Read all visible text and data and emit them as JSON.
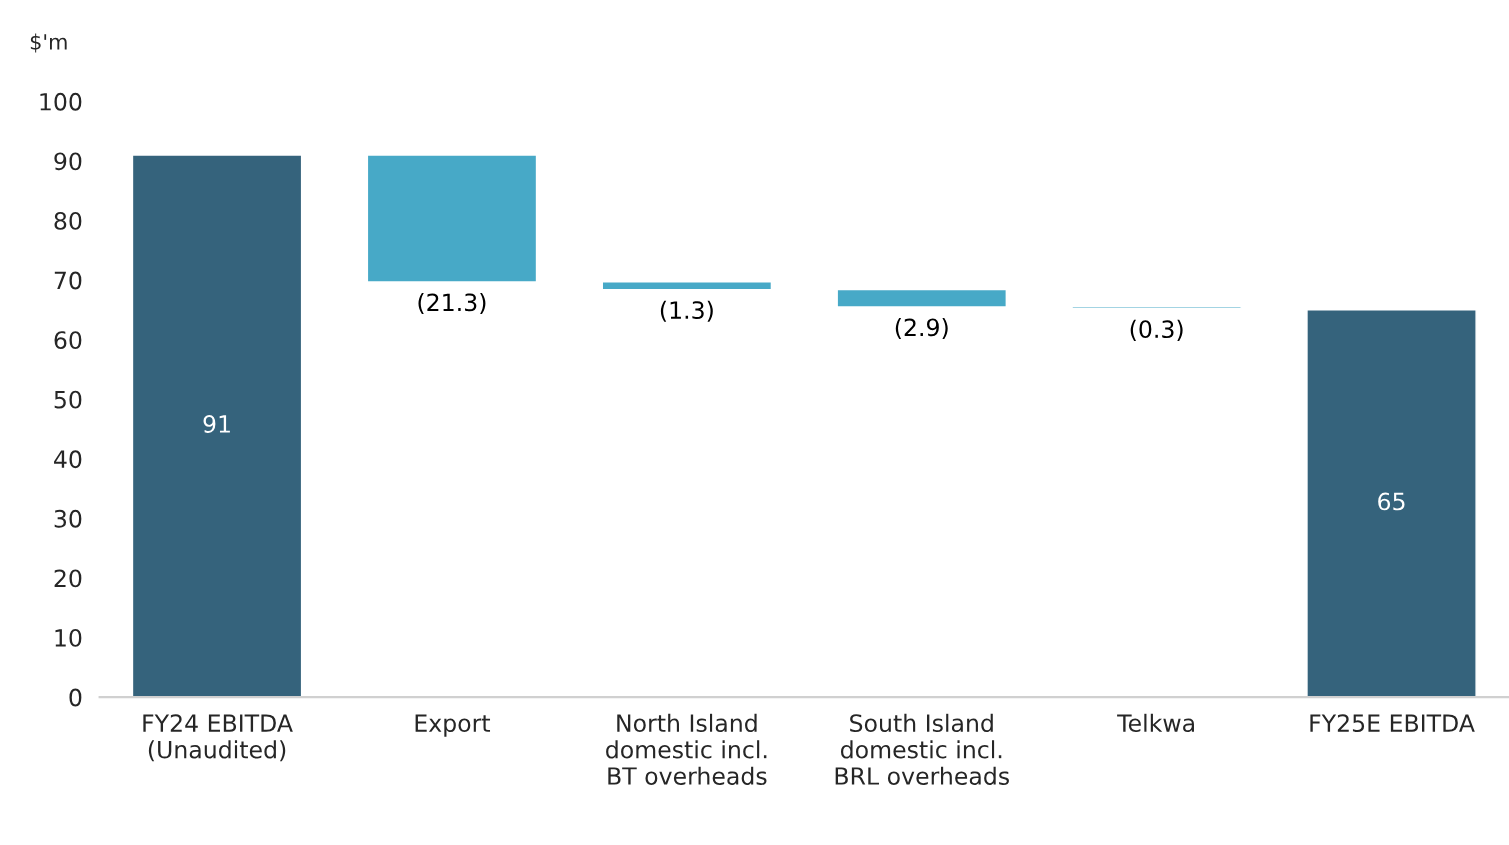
{
  "chart_data": {
    "type": "bar",
    "ylabel": "$'m",
    "categories": [
      "FY24 EBITDA\n(Unaudited)",
      "Export",
      "North Island\ndomestic incl.\nBT overheads",
      "South Island\ndomestic incl.\nBRL overheads",
      "Telkwa",
      "FY25E EBITDA"
    ],
    "values": [
      91,
      -21.3,
      -1.3,
      -2.9,
      -0.3,
      65
    ],
    "base": [
      0,
      91,
      69.7,
      68.4,
      65.5,
      0
    ],
    "colors": [
      "#35637c",
      "#47a9c7",
      "#47a9c7",
      "#47a9c7",
      "#47a9c7",
      "#35637c"
    ],
    "value_labels": [
      "91",
      "(21.3)",
      "(1.3)",
      "(2.9)",
      "(0.3)",
      "65"
    ],
    "ylim": [
      0,
      100
    ],
    "yticks": [
      0,
      10,
      20,
      30,
      40,
      50,
      60,
      70,
      80,
      90,
      100
    ],
    "grid": false,
    "legend": false
  }
}
